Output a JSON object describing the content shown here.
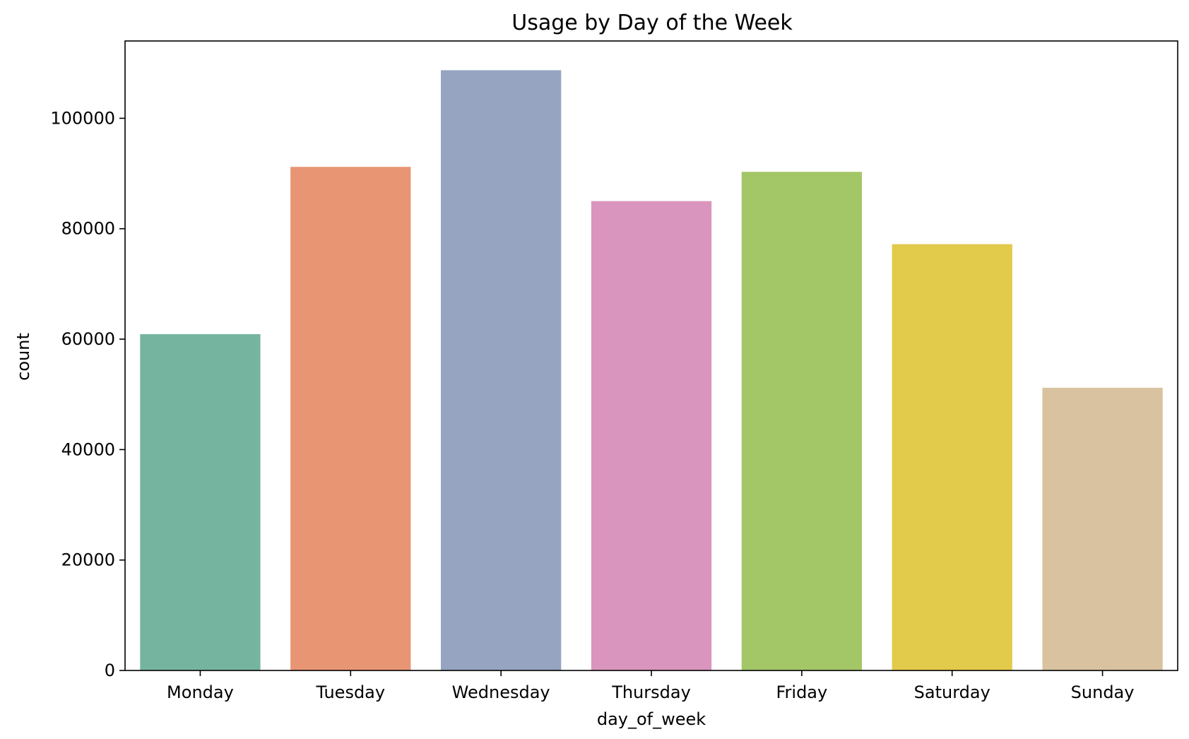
{
  "chart_data": {
    "type": "bar",
    "title": "Usage by Day of the Week",
    "xlabel": "day_of_week",
    "ylabel": "count",
    "categories": [
      "Monday",
      "Tuesday",
      "Wednesday",
      "Thursday",
      "Friday",
      "Saturday",
      "Sunday"
    ],
    "values": [
      60900,
      91200,
      108700,
      85000,
      90300,
      77200,
      51200
    ],
    "colors": [
      "#75b59f",
      "#e89574",
      "#96a4c2",
      "#da95be",
      "#a3c766",
      "#e2ca4b",
      "#d9c29f"
    ],
    "ylim": [
      0,
      114000
    ],
    "yticks": [
      0,
      20000,
      40000,
      60000,
      80000,
      100000
    ],
    "ytick_labels": [
      "0",
      "20000",
      "40000",
      "60000",
      "80000",
      "100000"
    ],
    "grid": false,
    "legend": "none"
  }
}
